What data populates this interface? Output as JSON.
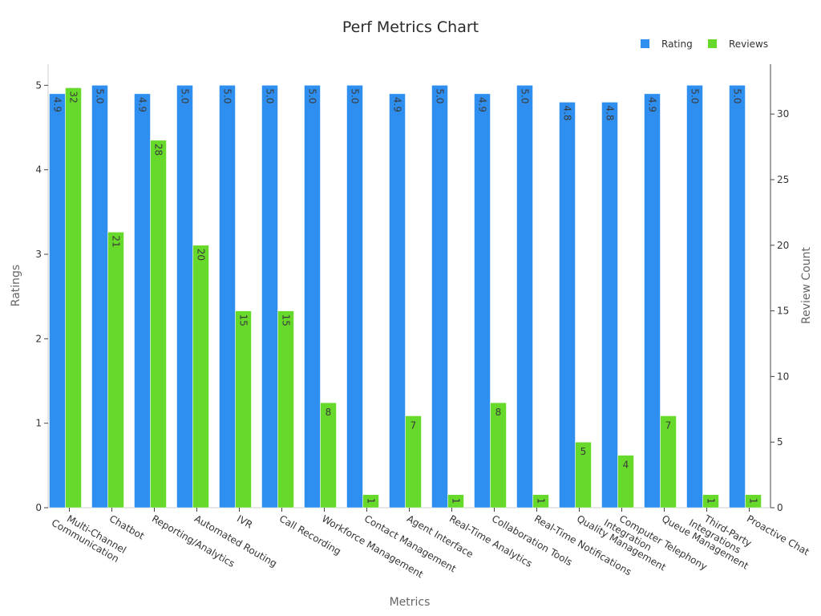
{
  "chart_data": {
    "type": "bar",
    "title": "Perf Metrics Chart",
    "xlabel": "Metrics",
    "ylabel_left": "Ratings",
    "ylabel_right": "Review Count",
    "ylim_left": [
      0,
      5.25
    ],
    "ylim_right": [
      0,
      33.8
    ],
    "yticks_left": [
      0,
      1,
      2,
      3,
      4,
      5
    ],
    "yticks_right": [
      0,
      5,
      10,
      15,
      20,
      25,
      30
    ],
    "legend_position": "top-right",
    "grid": false,
    "categories": [
      "Multi-Channel\nCommunication",
      "Chatbot",
      "Reporting/Analytics",
      "Automated Routing",
      "IVR",
      "Call Recording",
      "Workforce Management",
      "Contact Management",
      "Agent Interface",
      "Real-Time Analytics",
      "Collaboration Tools",
      "Real-Time Notifications",
      "Quality Management",
      "Computer Telephony\nIntegration",
      "Queue Management",
      "Third-Party\nIntegrations",
      "Proactive Chat"
    ],
    "series": [
      {
        "name": "Rating",
        "axis": "left",
        "color": "#2e8ff0",
        "values": [
          4.9,
          5.0,
          4.9,
          5.0,
          5.0,
          5.0,
          5.0,
          5.0,
          4.9,
          5.0,
          4.9,
          5.0,
          4.8,
          4.8,
          4.9,
          5.0,
          5.0
        ],
        "labels": [
          "4.9",
          "5.0",
          "4.9",
          "5.0",
          "5.0",
          "5.0",
          "5.0",
          "5.0",
          "4.9",
          "5.0",
          "4.9",
          "5.0",
          "4.8",
          "4.8",
          "4.9",
          "5.0",
          "5.0"
        ]
      },
      {
        "name": "Reviews",
        "axis": "right",
        "color": "#66d92a",
        "values": [
          32,
          21,
          28,
          20,
          15,
          15,
          8,
          1,
          7,
          1,
          8,
          1,
          5,
          4,
          7,
          1,
          1
        ],
        "labels": [
          "32",
          "21",
          "28",
          "20",
          "15",
          "15",
          "8",
          "1",
          "7",
          "1",
          "8",
          "1",
          "5",
          "4",
          "7",
          "1",
          "1"
        ]
      }
    ]
  }
}
